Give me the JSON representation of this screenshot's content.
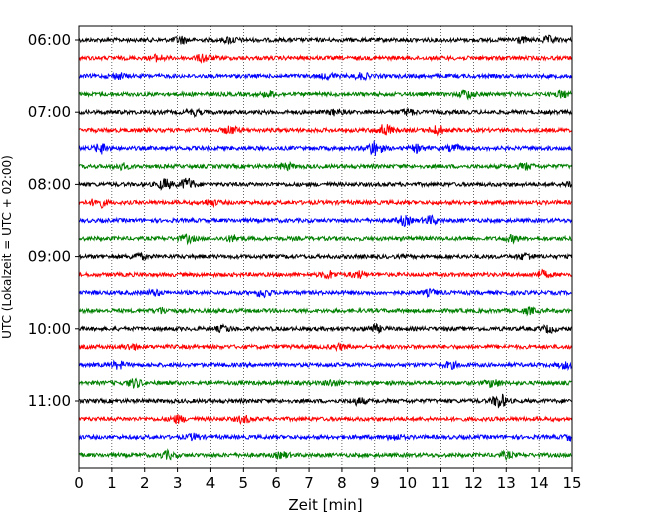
{
  "chart_data": {
    "type": "line",
    "title": "",
    "xlabel": "Zeit  [min]",
    "ylabel": "UTC (Lokalzeit = UTC + 02:00)",
    "xlim": [
      0,
      15
    ],
    "x_ticks": [
      "0",
      "1",
      "2",
      "3",
      "4",
      "5",
      "6",
      "7",
      "8",
      "9",
      "10",
      "11",
      "12",
      "13",
      "14",
      "15"
    ],
    "y_tick_labels": [
      "06:00",
      "07:00",
      "08:00",
      "09:00",
      "10:00",
      "11:00"
    ],
    "grid": "vertical dotted lines at each minute",
    "trace_interval_minutes": 15,
    "color_cycle": [
      "#000000",
      "#ff0000",
      "#0000ff",
      "#008000"
    ],
    "traces": [
      {
        "start": "06:00",
        "color": "#000000",
        "bursts": [
          [
            3.1,
            1.6
          ],
          [
            4.6,
            1.3
          ],
          [
            13.4,
            1.3
          ],
          [
            14.3,
            1.4
          ]
        ]
      },
      {
        "start": "06:15",
        "color": "#ff0000",
        "bursts": [
          [
            2.4,
            1.3
          ],
          [
            3.8,
            1.8
          ]
        ]
      },
      {
        "start": "06:30",
        "color": "#0000ff",
        "bursts": [
          [
            1.2,
            1.2
          ],
          [
            7.6,
            1.2
          ],
          [
            8.6,
            1.3
          ]
        ]
      },
      {
        "start": "06:45",
        "color": "#008000",
        "bursts": [
          [
            5.8,
            1.1
          ],
          [
            11.8,
            1.9
          ],
          [
            14.7,
            1.5
          ]
        ]
      },
      {
        "start": "07:00",
        "color": "#000000",
        "bursts": [
          [
            3.5,
            1.2
          ],
          [
            7.8,
            1.2
          ],
          [
            10.0,
            1.3
          ]
        ]
      },
      {
        "start": "07:15",
        "color": "#ff0000",
        "bursts": [
          [
            4.6,
            1.6
          ],
          [
            9.3,
            2.6
          ],
          [
            10.9,
            1.9
          ]
        ]
      },
      {
        "start": "07:30",
        "color": "#0000ff",
        "bursts": [
          [
            0.7,
            2.2
          ],
          [
            9.0,
            3.4
          ],
          [
            10.3,
            1.5
          ],
          [
            11.4,
            1.3
          ]
        ]
      },
      {
        "start": "07:45",
        "color": "#008000",
        "bursts": [
          [
            1.3,
            1.2
          ],
          [
            6.3,
            1.4
          ],
          [
            13.6,
            1.3
          ]
        ]
      },
      {
        "start": "08:00",
        "color": "#000000",
        "bursts": [
          [
            2.6,
            2.3
          ],
          [
            3.3,
            2.8
          ],
          [
            15.0,
            1.6
          ]
        ]
      },
      {
        "start": "08:15",
        "color": "#ff0000",
        "bursts": [
          [
            0.6,
            2.2
          ],
          [
            4.0,
            1.2
          ]
        ]
      },
      {
        "start": "08:30",
        "color": "#0000ff",
        "bursts": [
          [
            9.9,
            2.0
          ],
          [
            10.7,
            1.8
          ]
        ]
      },
      {
        "start": "08:45",
        "color": "#008000",
        "bursts": [
          [
            3.3,
            1.6
          ],
          [
            4.7,
            1.3
          ],
          [
            13.2,
            1.3
          ]
        ]
      },
      {
        "start": "09:00",
        "color": "#000000",
        "bursts": [
          [
            1.8,
            1.2
          ],
          [
            13.6,
            1.4
          ]
        ]
      },
      {
        "start": "09:15",
        "color": "#ff0000",
        "bursts": [
          [
            7.6,
            1.6
          ],
          [
            8.5,
            1.5
          ],
          [
            14.1,
            1.5
          ]
        ]
      },
      {
        "start": "09:30",
        "color": "#0000ff",
        "bursts": [
          [
            5.6,
            1.8
          ],
          [
            2.3,
            1.2
          ],
          [
            10.7,
            1.2
          ]
        ]
      },
      {
        "start": "09:45",
        "color": "#008000",
        "bursts": [
          [
            2.5,
            1.2
          ],
          [
            13.7,
            1.3
          ]
        ]
      },
      {
        "start": "10:00",
        "color": "#000000",
        "bursts": [
          [
            4.4,
            1.3
          ],
          [
            9.0,
            1.6
          ],
          [
            14.3,
            1.4
          ]
        ]
      },
      {
        "start": "10:15",
        "color": "#ff0000",
        "bursts": [
          [
            1.6,
            1.2
          ],
          [
            7.9,
            1.1
          ]
        ]
      },
      {
        "start": "10:30",
        "color": "#0000ff",
        "bursts": [
          [
            1.2,
            1.5
          ],
          [
            11.3,
            1.3
          ],
          [
            14.8,
            1.4
          ]
        ]
      },
      {
        "start": "10:45",
        "color": "#008000",
        "bursts": [
          [
            1.7,
            1.9
          ],
          [
            7.7,
            1.2
          ],
          [
            12.6,
            1.7
          ]
        ]
      },
      {
        "start": "11:00",
        "color": "#000000",
        "bursts": [
          [
            8.5,
            1.4
          ],
          [
            12.8,
            3.2
          ]
        ]
      },
      {
        "start": "11:15",
        "color": "#ff0000",
        "bursts": [
          [
            3.0,
            1.6
          ],
          [
            5.0,
            1.5
          ]
        ]
      },
      {
        "start": "11:30",
        "color": "#0000ff",
        "bursts": [
          [
            3.5,
            1.3
          ],
          [
            9.6,
            1.2
          ],
          [
            15.0,
            1.5
          ]
        ]
      },
      {
        "start": "11:45",
        "color": "#008000",
        "bursts": [
          [
            2.7,
            1.6
          ],
          [
            6.2,
            1.2
          ],
          [
            13.0,
            1.3
          ]
        ]
      }
    ]
  }
}
